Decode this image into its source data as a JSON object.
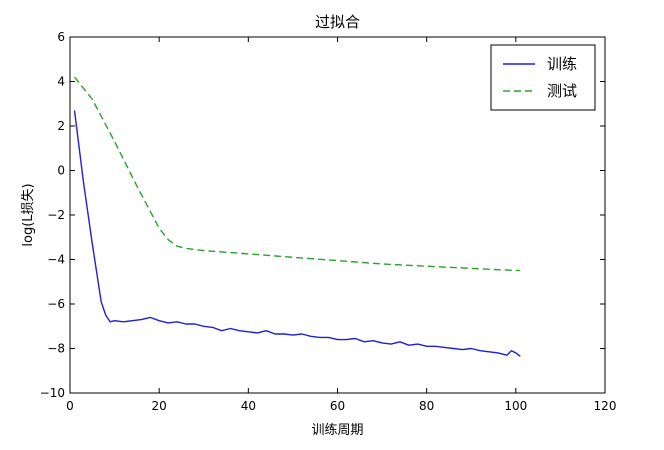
{
  "chart_data": {
    "type": "line",
    "title": "过拟合",
    "xlabel": "训练周期",
    "ylabel": "log(L损失)",
    "xlim": [
      0,
      120
    ],
    "ylim": [
      -10,
      6
    ],
    "x_ticks": [
      0,
      20,
      40,
      60,
      80,
      100,
      120
    ],
    "y_ticks": [
      6,
      4,
      2,
      0,
      -2,
      -4,
      -6,
      -8,
      -10
    ],
    "grid": false,
    "legend_position": "top-right",
    "series": [
      {
        "name": "训练",
        "color": "#1f1fd6",
        "style": "solid",
        "x": [
          1,
          3,
          5,
          7,
          8,
          9,
          10,
          12,
          14,
          16,
          18,
          20,
          22,
          24,
          26,
          28,
          30,
          32,
          34,
          36,
          38,
          40,
          42,
          44,
          46,
          48,
          50,
          52,
          54,
          56,
          58,
          60,
          62,
          64,
          66,
          68,
          70,
          72,
          74,
          76,
          78,
          80,
          82,
          84,
          86,
          88,
          90,
          92,
          94,
          96,
          97,
          98,
          99,
          100,
          101
        ],
        "y": [
          2.7,
          -0.5,
          -3.3,
          -5.9,
          -6.5,
          -6.8,
          -6.75,
          -6.8,
          -6.75,
          -6.7,
          -6.6,
          -6.75,
          -6.85,
          -6.8,
          -6.9,
          -6.9,
          -7.0,
          -7.05,
          -7.2,
          -7.1,
          -7.2,
          -7.25,
          -7.3,
          -7.2,
          -7.35,
          -7.35,
          -7.4,
          -7.35,
          -7.45,
          -7.5,
          -7.5,
          -7.6,
          -7.6,
          -7.55,
          -7.7,
          -7.65,
          -7.75,
          -7.8,
          -7.7,
          -7.85,
          -7.8,
          -7.9,
          -7.9,
          -7.95,
          -8.0,
          -8.05,
          -8.0,
          -8.1,
          -8.15,
          -8.2,
          -8.25,
          -8.3,
          -8.1,
          -8.2,
          -8.35
        ]
      },
      {
        "name": "测试",
        "color": "#2ca02c",
        "style": "dashed",
        "x": [
          1,
          5,
          10,
          15,
          20,
          22,
          24,
          26,
          28,
          30,
          40,
          50,
          60,
          70,
          80,
          90,
          95,
          101
        ],
        "y": [
          4.2,
          3.2,
          1.3,
          -0.7,
          -2.6,
          -3.1,
          -3.4,
          -3.5,
          -3.55,
          -3.6,
          -3.75,
          -3.9,
          -4.05,
          -4.2,
          -4.3,
          -4.4,
          -4.45,
          -4.5
        ]
      }
    ]
  }
}
